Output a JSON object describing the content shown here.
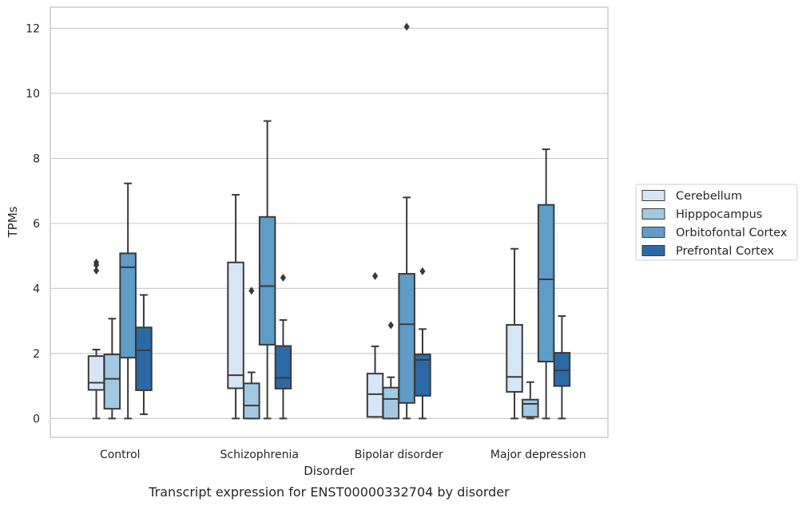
{
  "chart_data": {
    "type": "box",
    "title": "",
    "caption": "Transcript expression for ENST00000332704 by disorder",
    "xlabel": "Disorder",
    "ylabel": "TPMs",
    "ylim": [
      -0.58,
      12.65
    ],
    "yticks": [
      0,
      2,
      4,
      6,
      8,
      10,
      12
    ],
    "grid": true,
    "legend_position": "right",
    "categories": [
      "Control",
      "Schizophrenia",
      "Bipolar disorder",
      "Major depression"
    ],
    "series": [
      {
        "name": "Cerebellum",
        "color": "#d7e6f4",
        "boxes": [
          {
            "whislo": 0,
            "q1": 0.88,
            "med": 1.1,
            "q3": 1.92,
            "whishi": 2.12,
            "fliers": [
              4.55,
              4.72,
              4.8
            ]
          },
          {
            "whislo": 0,
            "q1": 0.93,
            "med": 1.33,
            "q3": 4.8,
            "whishi": 6.88,
            "fliers": []
          },
          {
            "whislo": 0.05,
            "q1": 0.05,
            "med": 0.75,
            "q3": 1.38,
            "whishi": 2.22,
            "fliers": [
              4.38
            ]
          },
          {
            "whislo": 0,
            "q1": 0.82,
            "med": 1.28,
            "q3": 2.88,
            "whishi": 5.22,
            "fliers": []
          }
        ]
      },
      {
        "name": "Hipppocampus",
        "color": "#a3c8e2",
        "boxes": [
          {
            "whislo": 0,
            "q1": 0.3,
            "med": 1.22,
            "q3": 1.97,
            "whishi": 3.07,
            "fliers": []
          },
          {
            "whislo": 0,
            "q1": 0,
            "med": 0.4,
            "q3": 1.08,
            "whishi": 1.42,
            "fliers": [
              3.93
            ]
          },
          {
            "whislo": 0,
            "q1": 0,
            "med": 0.6,
            "q3": 0.95,
            "whishi": 1.27,
            "fliers": [
              2.87
            ]
          },
          {
            "whislo": 0,
            "q1": 0.05,
            "med": 0.45,
            "q3": 0.58,
            "whishi": 1.12,
            "fliers": []
          }
        ]
      },
      {
        "name": "Orbitofontal Cortex",
        "color": "#5f9cc8",
        "boxes": [
          {
            "whislo": 0,
            "q1": 1.87,
            "med": 4.65,
            "q3": 5.08,
            "whishi": 7.23,
            "fliers": []
          },
          {
            "whislo": 0,
            "q1": 2.27,
            "med": 4.07,
            "q3": 6.2,
            "whishi": 9.15,
            "fliers": []
          },
          {
            "whislo": 0,
            "q1": 0.48,
            "med": 2.9,
            "q3": 4.45,
            "whishi": 6.8,
            "fliers": [
              12.05
            ]
          },
          {
            "whislo": 0,
            "q1": 1.75,
            "med": 4.28,
            "q3": 6.57,
            "whishi": 8.28,
            "fliers": []
          }
        ]
      },
      {
        "name": "Prefrontal Cortex",
        "color": "#2c6aa6",
        "boxes": [
          {
            "whislo": 0.13,
            "q1": 0.87,
            "med": 2.1,
            "q3": 2.8,
            "whishi": 3.8,
            "fliers": []
          },
          {
            "whislo": 0,
            "q1": 0.92,
            "med": 1.25,
            "q3": 2.23,
            "whishi": 3.03,
            "fliers": [
              4.33
            ]
          },
          {
            "whislo": 0,
            "q1": 0.7,
            "med": 1.8,
            "q3": 1.97,
            "whishi": 2.75,
            "fliers": [
              4.53
            ]
          },
          {
            "whislo": 0,
            "q1": 1.0,
            "med": 1.48,
            "q3": 2.02,
            "whishi": 3.15,
            "fliers": []
          }
        ]
      }
    ]
  }
}
